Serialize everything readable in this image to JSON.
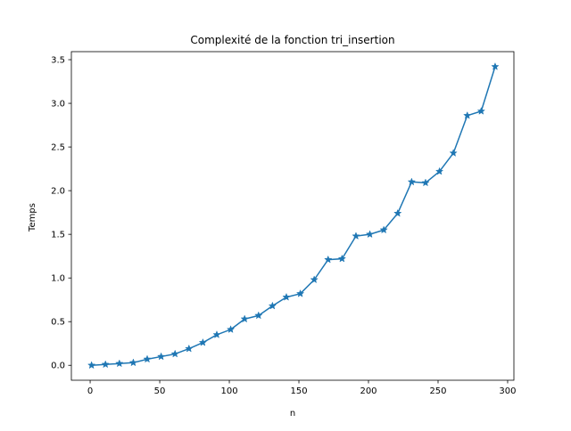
{
  "chart_data": {
    "type": "line",
    "title": "Complexité de la fonction tri_insertion",
    "xlabel": "n",
    "ylabel": "Temps",
    "xlim": [
      -13.5,
      304.5
    ],
    "ylim": [
      -0.171,
      3.592
    ],
    "x_ticks": [
      0,
      50,
      100,
      150,
      200,
      250,
      300
    ],
    "y_ticks": [
      0.0,
      0.5,
      1.0,
      1.5,
      2.0,
      2.5,
      3.0,
      3.5
    ],
    "x_tick_labels": [
      "0",
      "50",
      "100",
      "150",
      "200",
      "250",
      "300"
    ],
    "y_tick_labels": [
      "0.0",
      "0.5",
      "1.0",
      "1.5",
      "2.0",
      "2.5",
      "3.0",
      "3.5"
    ],
    "grid": false,
    "legend": false,
    "marker": "star",
    "color": "#1f77b4",
    "series": [
      {
        "x": [
          1,
          11,
          21,
          31,
          41,
          51,
          61,
          71,
          81,
          91,
          101,
          111,
          121,
          131,
          141,
          151,
          161,
          171,
          181,
          191,
          201,
          211,
          221,
          231,
          241,
          251,
          261,
          271,
          281,
          291
        ],
        "y": [
          0.0,
          0.01,
          0.02,
          0.03,
          0.07,
          0.1,
          0.13,
          0.19,
          0.26,
          0.35,
          0.41,
          0.53,
          0.57,
          0.68,
          0.78,
          0.82,
          0.98,
          1.21,
          1.22,
          1.48,
          1.5,
          1.55,
          1.74,
          2.1,
          2.09,
          2.22,
          2.43,
          2.86,
          2.91,
          3.42
        ]
      }
    ]
  }
}
